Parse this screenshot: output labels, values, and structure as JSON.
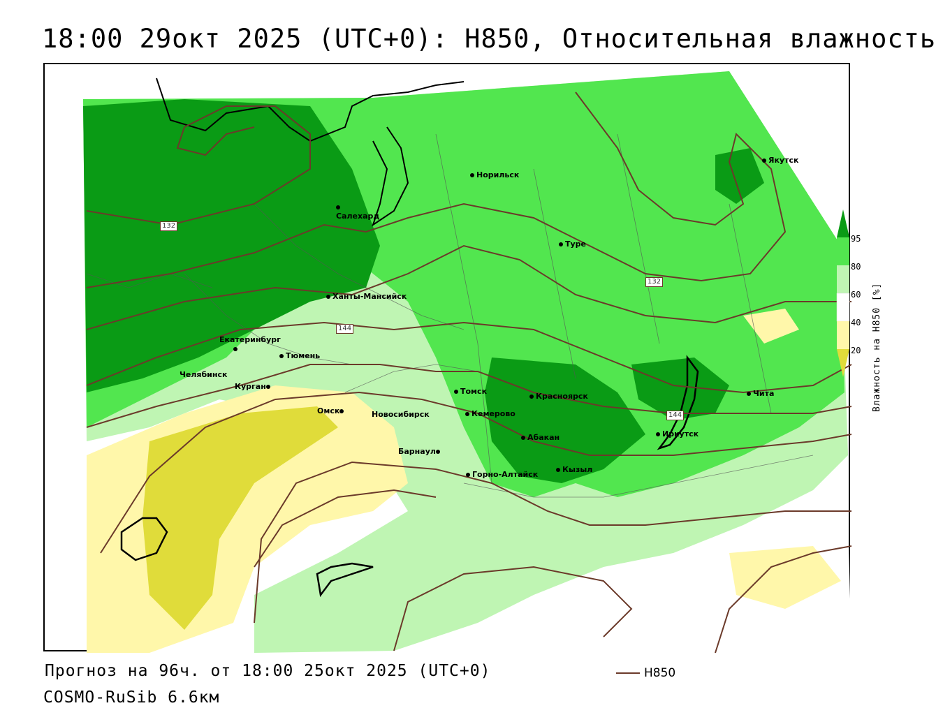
{
  "title": "18:00 29окт 2025 (UTC+0): H850, Относительная влажность",
  "footer": {
    "forecast": "Прогноз на 96ч. от 18:00 25окт 2025 (UTC+0)",
    "model": "COSMO-RuSib 6.6км",
    "key_label": "H850"
  },
  "legend": {
    "title": "Влажность на H850 [%]",
    "ticks": [
      "95",
      "80",
      "60",
      "40",
      "20"
    ],
    "colors": {
      "95": "#0a9b15",
      "80": "#52e64f",
      "60": "#bff5b3",
      "40": "#ffffff",
      "20": "#fff7aa",
      "low": "#e0dc3a"
    }
  },
  "isolines": {
    "color": "#6b3a2a",
    "labels": [
      "132",
      "144",
      "132",
      "144"
    ]
  },
  "cities": [
    {
      "name": "Салехард"
    },
    {
      "name": "Норильск"
    },
    {
      "name": "Якутск"
    },
    {
      "name": "Туре"
    },
    {
      "name": "Ханты-Мансийск"
    },
    {
      "name": "Екатеринбург"
    },
    {
      "name": "Тюмень"
    },
    {
      "name": "Челябинск"
    },
    {
      "name": "Курган"
    },
    {
      "name": "Омск"
    },
    {
      "name": "Новосибирск"
    },
    {
      "name": "Томск"
    },
    {
      "name": "Кемерово"
    },
    {
      "name": "Красноярск"
    },
    {
      "name": "Абакан"
    },
    {
      "name": "Барнаул"
    },
    {
      "name": "Горно-Алтайск"
    },
    {
      "name": "Кызыл"
    },
    {
      "name": "Иркутск"
    },
    {
      "name": "Чита"
    }
  ]
}
